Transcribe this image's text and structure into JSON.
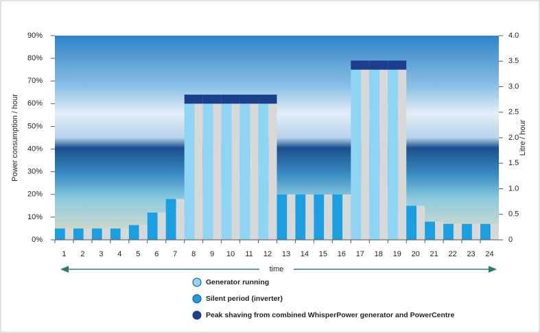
{
  "chart_data": {
    "type": "stacked-bar",
    "y_label": "Power consumption / hour",
    "y2_label": "Litre / hour",
    "x_label": "time",
    "categories": [
      "1",
      "2",
      "3",
      "4",
      "5",
      "6",
      "7",
      "8",
      "9",
      "10",
      "11",
      "12",
      "13",
      "14",
      "15",
      "16",
      "17",
      "18",
      "19",
      "20",
      "21",
      "22",
      "23",
      "24"
    ],
    "series": [
      {
        "name": "Silent period (inverter)",
        "color": "#1aa0e2",
        "values": [
          5,
          5,
          5,
          5,
          6.5,
          12,
          18,
          null,
          null,
          null,
          null,
          null,
          20,
          20,
          20,
          20,
          null,
          null,
          null,
          15,
          8,
          7,
          7,
          7
        ]
      },
      {
        "name": "Generator running",
        "color": "#8dd4f5",
        "values": [
          null,
          null,
          null,
          null,
          null,
          null,
          null,
          60,
          60,
          60,
          60,
          60,
          null,
          null,
          null,
          null,
          75,
          75,
          75,
          null,
          null,
          null,
          null,
          null
        ]
      },
      {
        "name": "Peak shaving from combined WhisperPower generator and PowerCentre",
        "color": "#1c3f8c",
        "values": [
          null,
          null,
          null,
          null,
          null,
          null,
          null,
          4,
          4,
          4,
          4,
          4,
          null,
          null,
          null,
          null,
          4,
          4,
          4,
          null,
          null,
          null,
          null,
          null
        ]
      }
    ],
    "legend_order": [
      1,
      0,
      2
    ],
    "ylim": [
      0,
      90
    ],
    "yticks": [
      {
        "value": 0,
        "label": "0%"
      },
      {
        "value": 10,
        "label": "10%"
      },
      {
        "value": 20,
        "label": "20%"
      },
      {
        "value": 30,
        "label": "30%"
      },
      {
        "value": 40,
        "label": "40%"
      },
      {
        "value": 50,
        "label": "50%"
      },
      {
        "value": 60,
        "label": "60%"
      },
      {
        "value": 70,
        "label": "70%"
      },
      {
        "value": 80,
        "label": "80%"
      },
      {
        "value": 90,
        "label": "90%"
      }
    ],
    "y2lim": [
      0,
      4
    ],
    "y2ticks": [
      0,
      0.5,
      {
        "value": 1,
        "label": "1.0"
      },
      1.5,
      {
        "value": 2,
        "label": "2.0"
      },
      2.5,
      {
        "value": 3,
        "label": "3.0"
      },
      3.5,
      {
        "value": 4,
        "label": "4.0"
      }
    ]
  }
}
